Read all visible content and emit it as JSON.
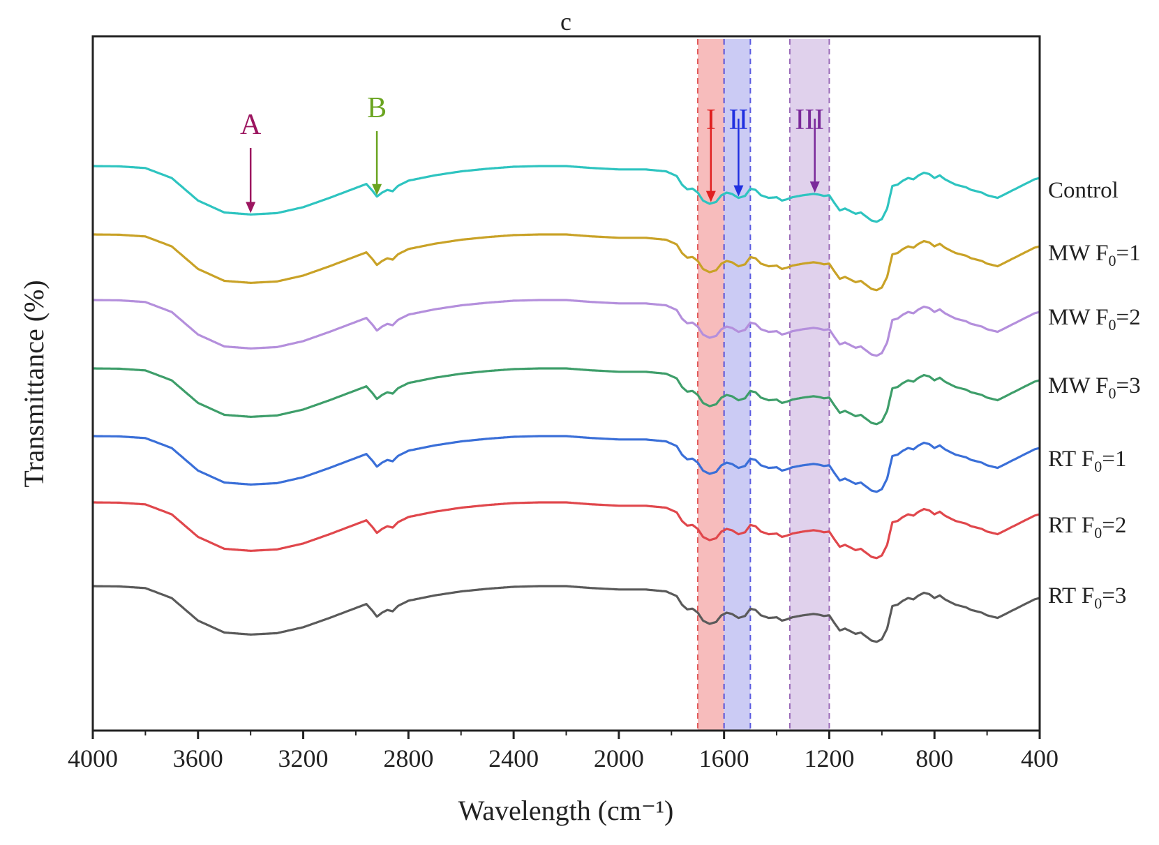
{
  "chart_data": {
    "type": "line",
    "title": "c",
    "xlabel": "Wavelength (cm⁻¹)",
    "ylabel": "Transmittance (%)",
    "xlim": [
      4000,
      400
    ],
    "x_reversed": true,
    "x_ticks": [
      4000,
      3600,
      3200,
      2800,
      2400,
      2000,
      1600,
      1200,
      800,
      400
    ],
    "y_ticks_shown": false,
    "grid": false,
    "legend": "inline labels at right end of each curve",
    "shape": [
      [
        4000,
        0
      ],
      [
        3900,
        -0.4
      ],
      [
        3800,
        -3
      ],
      [
        3700,
        -18
      ],
      [
        3600,
        -52
      ],
      [
        3500,
        -70
      ],
      [
        3400,
        -73
      ],
      [
        3300,
        -71
      ],
      [
        3200,
        -62
      ],
      [
        3100,
        -48
      ],
      [
        3000,
        -33
      ],
      [
        2960,
        -27
      ],
      [
        2935,
        -38
      ],
      [
        2920,
        -46
      ],
      [
        2900,
        -40
      ],
      [
        2880,
        -36
      ],
      [
        2860,
        -38
      ],
      [
        2840,
        -30
      ],
      [
        2800,
        -22
      ],
      [
        2700,
        -14
      ],
      [
        2600,
        -8
      ],
      [
        2500,
        -4
      ],
      [
        2400,
        -1
      ],
      [
        2300,
        0
      ],
      [
        2200,
        0
      ],
      [
        2100,
        -3
      ],
      [
        2000,
        -5
      ],
      [
        1900,
        -5
      ],
      [
        1820,
        -8
      ],
      [
        1780,
        -15
      ],
      [
        1760,
        -28
      ],
      [
        1740,
        -35
      ],
      [
        1720,
        -34
      ],
      [
        1700,
        -40
      ],
      [
        1680,
        -52
      ],
      [
        1655,
        -57
      ],
      [
        1630,
        -54
      ],
      [
        1610,
        -44
      ],
      [
        1590,
        -40
      ],
      [
        1570,
        -42
      ],
      [
        1545,
        -48
      ],
      [
        1520,
        -45
      ],
      [
        1500,
        -34
      ],
      [
        1480,
        -36
      ],
      [
        1460,
        -44
      ],
      [
        1430,
        -48
      ],
      [
        1400,
        -47
      ],
      [
        1380,
        -52
      ],
      [
        1360,
        -50
      ],
      [
        1340,
        -47
      ],
      [
        1300,
        -44
      ],
      [
        1260,
        -42
      ],
      [
        1240,
        -43
      ],
      [
        1220,
        -45
      ],
      [
        1200,
        -44
      ],
      [
        1180,
        -56
      ],
      [
        1160,
        -67
      ],
      [
        1140,
        -64
      ],
      [
        1120,
        -68
      ],
      [
        1100,
        -72
      ],
      [
        1080,
        -70
      ],
      [
        1060,
        -76
      ],
      [
        1040,
        -82
      ],
      [
        1020,
        -84
      ],
      [
        1000,
        -80
      ],
      [
        980,
        -64
      ],
      [
        960,
        -30
      ],
      [
        940,
        -28
      ],
      [
        920,
        -22
      ],
      [
        900,
        -18
      ],
      [
        880,
        -20
      ],
      [
        860,
        -14
      ],
      [
        840,
        -10
      ],
      [
        820,
        -12
      ],
      [
        800,
        -18
      ],
      [
        780,
        -14
      ],
      [
        760,
        -20
      ],
      [
        740,
        -24
      ],
      [
        720,
        -28
      ],
      [
        700,
        -30
      ],
      [
        680,
        -32
      ],
      [
        660,
        -36
      ],
      [
        640,
        -38
      ],
      [
        620,
        -40
      ],
      [
        600,
        -44
      ],
      [
        580,
        -46
      ],
      [
        560,
        -48
      ],
      [
        540,
        -44
      ],
      [
        520,
        -40
      ],
      [
        500,
        -36
      ],
      [
        480,
        -32
      ],
      [
        460,
        -28
      ],
      [
        440,
        -24
      ],
      [
        420,
        -20
      ],
      [
        400,
        -18
      ]
    ],
    "series": [
      {
        "name": "Control",
        "color": "#2ec4c0"
      },
      {
        "name": "MW F0=1",
        "color": "#c9a227"
      },
      {
        "name": "MW F0=2",
        "color": "#b48fdc"
      },
      {
        "name": "MW F0=3",
        "color": "#3e9e6a"
      },
      {
        "name": "RT F0=1",
        "color": "#3a6fd8"
      },
      {
        "name": "RT F0=2",
        "color": "#e0474c"
      },
      {
        "name": "RT F0=3",
        "color": "#5a5a5a"
      }
    ],
    "bands": [
      {
        "label": "I",
        "x_from": 1700,
        "x_to": 1600,
        "fill": "#f4a6a6",
        "edge": "#e05a5a",
        "label_color": "#e02020",
        "arrow_x": 1650
      },
      {
        "label": "II",
        "x_from": 1600,
        "x_to": 1500,
        "fill": "#b9b9f0",
        "edge": "#5a5ae0",
        "label_color": "#2030e0",
        "arrow_x": 1545
      },
      {
        "label": "III",
        "x_from": 1350,
        "x_to": 1200,
        "fill": "#d6c2e6",
        "edge": "#9a6ab8",
        "label_color": "#7a2a9a",
        "arrow_x": 1255
      }
    ],
    "markers": [
      {
        "label": "A",
        "x": 3400,
        "color": "#9c1660"
      },
      {
        "label": "B",
        "x": 2920,
        "color": "#6aa420"
      }
    ]
  }
}
